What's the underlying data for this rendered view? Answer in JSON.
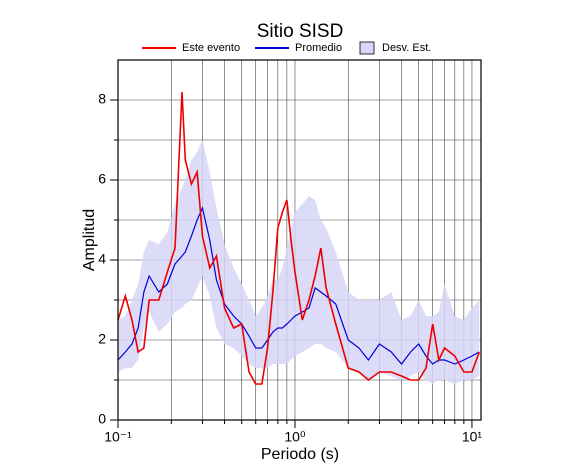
{
  "chart_data": {
    "type": "line",
    "title": "Sitio SISD",
    "xlabel": "Periodo (s)",
    "ylabel": "Amplitud",
    "xscale": "log",
    "grid": true,
    "xlim": [
      0.1,
      11.25
    ],
    "ylim": [
      0,
      9
    ],
    "xticks": [
      {
        "value": 0.1,
        "label": "10⁻¹"
      },
      {
        "value": 1,
        "label": "10⁰"
      },
      {
        "value": 10,
        "label": "10¹"
      }
    ],
    "xminor": [
      0.2,
      0.3,
      0.4,
      0.5,
      0.6,
      0.7,
      0.8,
      0.9,
      2,
      3,
      4,
      5,
      6,
      7,
      8,
      9
    ],
    "yticks": [
      0,
      2,
      4,
      6,
      8
    ],
    "yminor": [
      1,
      3,
      5,
      7
    ],
    "x": [
      0.1,
      0.11,
      0.12,
      0.13,
      0.14,
      0.15,
      0.17,
      0.19,
      0.21,
      0.23,
      0.24,
      0.26,
      0.28,
      0.3,
      0.33,
      0.36,
      0.4,
      0.45,
      0.5,
      0.55,
      0.6,
      0.65,
      0.7,
      0.75,
      0.8,
      0.85,
      0.9,
      0.95,
      1.0,
      1.1,
      1.2,
      1.3,
      1.4,
      1.5,
      1.7,
      2.0,
      2.3,
      2.6,
      3.0,
      3.5,
      4.0,
      4.5,
      5.0,
      5.5,
      6.0,
      6.5,
      7.0,
      8.0,
      9.0,
      10.0,
      11.0
    ],
    "series": [
      {
        "name": "Este evento",
        "color": "#ee0000",
        "values": [
          2.5,
          3.1,
          2.5,
          1.7,
          1.8,
          3.0,
          3.0,
          3.7,
          4.3,
          8.2,
          6.5,
          5.9,
          6.2,
          4.6,
          3.8,
          4.1,
          2.8,
          2.3,
          2.4,
          1.2,
          0.9,
          0.9,
          1.8,
          3.2,
          4.8,
          5.2,
          5.5,
          4.5,
          3.7,
          2.5,
          3.0,
          3.6,
          4.3,
          3.3,
          2.4,
          1.3,
          1.2,
          1.0,
          1.2,
          1.2,
          1.1,
          1.0,
          1.0,
          1.3,
          2.4,
          1.5,
          1.8,
          1.6,
          1.2,
          1.2,
          1.7
        ]
      },
      {
        "name": "Promedio",
        "color": "#0000dd",
        "values": [
          1.5,
          1.7,
          1.9,
          2.3,
          3.2,
          3.6,
          3.2,
          3.4,
          3.9,
          4.1,
          4.2,
          4.6,
          5.0,
          5.3,
          4.5,
          3.5,
          2.9,
          2.6,
          2.4,
          2.1,
          1.8,
          1.8,
          2.0,
          2.2,
          2.3,
          2.3,
          2.4,
          2.5,
          2.6,
          2.7,
          2.8,
          3.3,
          3.2,
          3.1,
          2.9,
          2.0,
          1.8,
          1.5,
          1.9,
          1.7,
          1.4,
          1.7,
          1.9,
          1.6,
          1.4,
          1.5,
          1.5,
          1.4,
          1.5,
          1.6,
          1.7
        ]
      },
      {
        "name": "Desv. Est.",
        "color": "#d6d6f7",
        "upper": [
          2.5,
          2.6,
          3.0,
          3.4,
          4.2,
          4.5,
          4.4,
          4.7,
          5.4,
          5.8,
          6.0,
          6.5,
          6.7,
          7.0,
          6.2,
          5.3,
          4.4,
          3.8,
          3.4,
          3.0,
          2.6,
          2.8,
          3.1,
          3.5,
          3.5,
          3.8,
          4.3,
          4.8,
          5.2,
          5.4,
          5.6,
          5.5,
          5.0,
          4.8,
          4.2,
          3.2,
          3.0,
          3.0,
          3.0,
          3.2,
          2.5,
          2.6,
          3.0,
          2.6,
          2.6,
          2.7,
          3.4,
          2.6,
          2.5,
          2.8,
          3.0
        ],
        "lower": [
          1.2,
          1.3,
          1.3,
          1.5,
          2.3,
          2.7,
          2.2,
          2.4,
          2.7,
          2.8,
          2.9,
          3.0,
          3.3,
          3.6,
          3.1,
          2.3,
          1.9,
          1.8,
          1.6,
          1.4,
          1.3,
          1.3,
          1.3,
          1.4,
          1.4,
          1.4,
          1.4,
          1.5,
          1.6,
          1.7,
          1.8,
          1.9,
          1.9,
          1.8,
          1.7,
          1.3,
          1.2,
          1.0,
          1.2,
          1.1,
          1.0,
          1.1,
          1.2,
          1.0,
          0.9,
          1.0,
          1.0,
          0.9,
          1.0,
          1.0,
          1.1
        ]
      }
    ]
  }
}
